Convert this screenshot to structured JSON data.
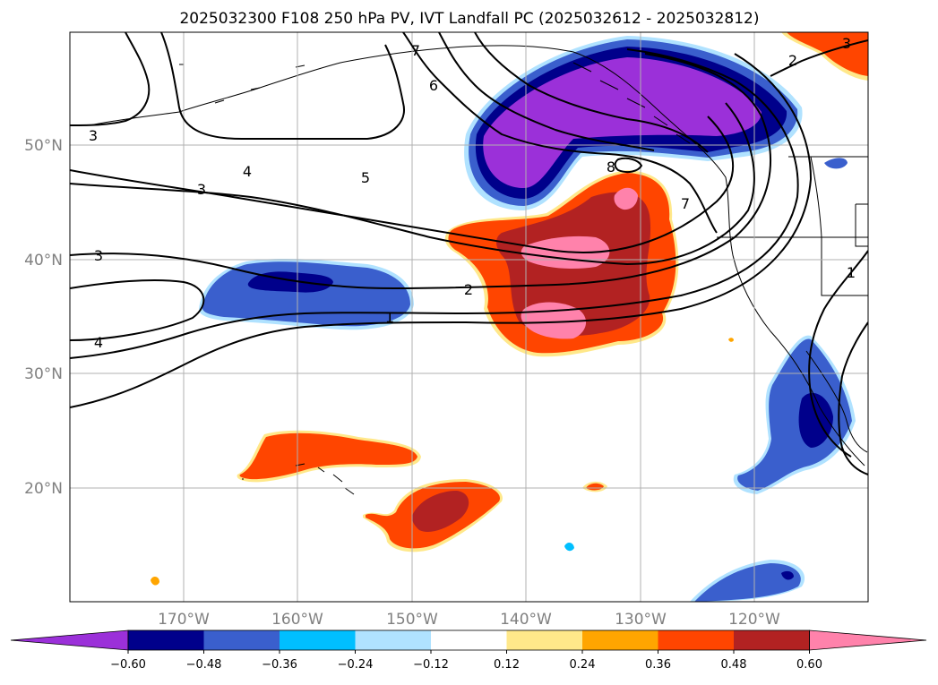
{
  "title": "2025032300 F108 250 hPa PV, IVT Landfall PC (2025032612 - 2025032812)",
  "lon_labels": [
    "170°W",
    "160°W",
    "150°W",
    "140°W",
    "130°W",
    "120°W"
  ],
  "lat_labels": [
    "50°N",
    "40°N",
    "30°N",
    "20°N"
  ],
  "colorbar": {
    "ticks": [
      "−0.60",
      "−0.48",
      "−0.36",
      "−0.24",
      "−0.12",
      "0.12",
      "0.24",
      "0.36",
      "0.48",
      "0.60"
    ],
    "colors": [
      "#9b30d9",
      "#00008b",
      "#3a5fcd",
      "#00bfff",
      "#b0e2ff",
      "#ffffff",
      "#ffe88a",
      "#ffa500",
      "#ff4500",
      "#b22222",
      "#ff82ab"
    ]
  },
  "contour_labels": [
    "3",
    "4",
    "3",
    "3",
    "4",
    "5",
    "6",
    "7",
    "2",
    "1",
    "8",
    "7",
    "3",
    "2",
    "1"
  ]
}
